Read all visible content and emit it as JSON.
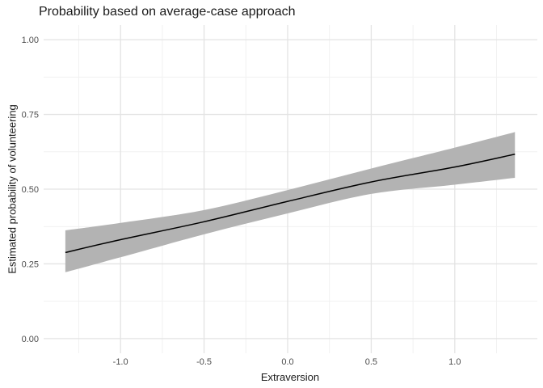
{
  "chart_data": {
    "type": "line",
    "title": "Probability based on average-case approach",
    "xlabel": "Extraversion",
    "ylabel": "Estimated probability of volunteering",
    "xlim": [
      -1.46,
      1.494
    ],
    "ylim": [
      -0.049,
      1.049
    ],
    "grid": "major and minor, no panel border, no tick marks",
    "legend_position": "none",
    "x_ticks": [
      {
        "value": -1.0,
        "label": "-1.0"
      },
      {
        "value": -0.5,
        "label": "-0.5"
      },
      {
        "value": 0.0,
        "label": "0.0"
      },
      {
        "value": 0.5,
        "label": "0.5"
      },
      {
        "value": 1.0,
        "label": "1.0"
      }
    ],
    "y_ticks": [
      {
        "value": 0.0,
        "label": "0.00"
      },
      {
        "value": 0.25,
        "label": "0.25"
      },
      {
        "value": 0.5,
        "label": "0.50"
      },
      {
        "value": 0.75,
        "label": "0.75"
      },
      {
        "value": 1.0,
        "label": "1.00"
      }
    ],
    "x_minor_ticks": [
      -1.25,
      -0.75,
      -0.25,
      0.25,
      0.75,
      1.25
    ],
    "y_minor_ticks": [
      0.125,
      0.375,
      0.625,
      0.875
    ],
    "series": [
      {
        "name": "fit-line",
        "x": [
          -1.33,
          -1.0,
          -0.5,
          0.0,
          0.5,
          1.0,
          1.36
        ],
        "y": [
          0.288,
          0.331,
          0.391,
          0.459,
          0.524,
          0.574,
          0.617
        ]
      }
    ],
    "ribbon": {
      "name": "confidence-band",
      "x": [
        -1.33,
        -1.0,
        -0.5,
        0.0,
        0.5,
        1.0,
        1.36
      ],
      "lower": [
        0.222,
        0.272,
        0.349,
        0.419,
        0.484,
        0.515,
        0.538
      ],
      "upper": [
        0.362,
        0.387,
        0.43,
        0.497,
        0.569,
        0.639,
        0.691
      ]
    },
    "colors": {
      "background": "#ffffff",
      "line": "#000000",
      "ribbon": "#b3b3b3",
      "grid_major": "#e3e3e3",
      "grid_minor": "#f1f1f1",
      "tick_label": "#4d4d4d",
      "title": "#1a1a1a",
      "axis_title": "#1a1a1a"
    }
  }
}
